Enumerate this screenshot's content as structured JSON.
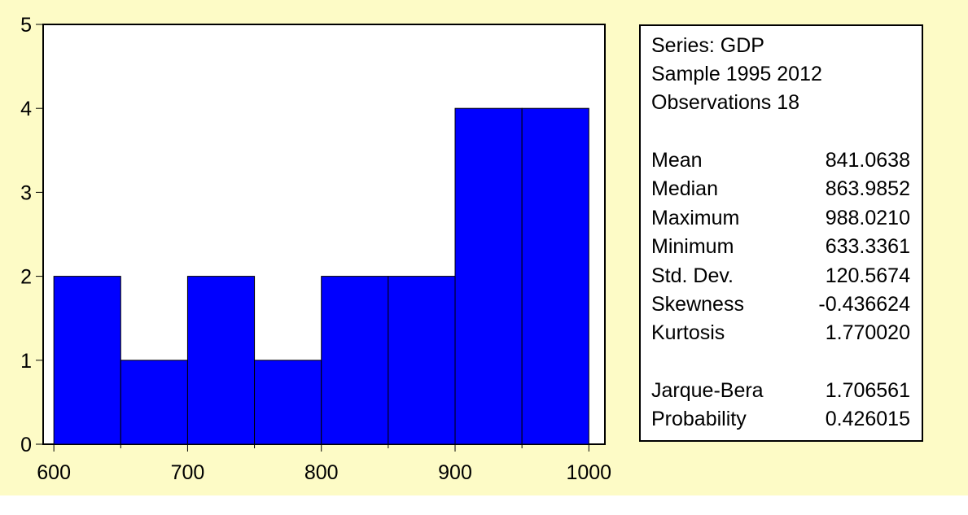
{
  "colors": {
    "background": "#fdfbc6",
    "bar_fill": "#0000ff",
    "bar_edge": "#000000"
  },
  "chart_data": {
    "type": "bar",
    "title": "",
    "xlabel": "",
    "ylabel": "",
    "bin_edges": [
      600,
      650,
      700,
      750,
      800,
      850,
      900,
      950,
      1000
    ],
    "values": [
      2,
      1,
      2,
      1,
      2,
      2,
      4,
      4
    ],
    "xlim": [
      592,
      1012
    ],
    "ylim": [
      0,
      5
    ],
    "x_ticks": [
      600,
      700,
      800,
      900,
      1000
    ],
    "y_ticks": [
      0,
      1,
      2,
      3,
      4,
      5
    ],
    "grid": false
  },
  "stats": {
    "series": "Series: GDP",
    "sample": "Sample 1995 2012",
    "observations": "Observations 18",
    "rows": [
      {
        "label": "Mean",
        "value": "841.0638"
      },
      {
        "label": "Median",
        "value": "863.9852"
      },
      {
        "label": "Maximum",
        "value": "988.0210"
      },
      {
        "label": "Minimum",
        "value": "633.3361"
      },
      {
        "label": "Std. Dev.",
        "value": "120.5674"
      },
      {
        "label": "Skewness",
        "value": "-0.436624"
      },
      {
        "label": "Kurtosis",
        "value": "1.770020"
      }
    ],
    "tests": [
      {
        "label": "Jarque-Bera",
        "value": "1.706561"
      },
      {
        "label": "Probability",
        "value": "0.426015"
      }
    ]
  }
}
